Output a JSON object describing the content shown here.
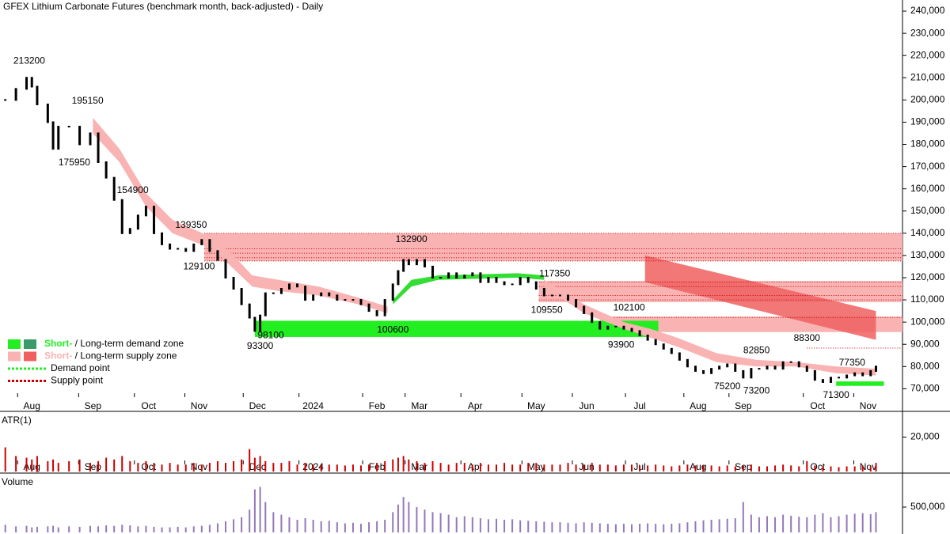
{
  "chart_data": {
    "type": "bar",
    "title": "GFEX Lithium Carbonate Futures (benchmark month, back-adjusted) - Daily",
    "color": "#000000",
    "xlim": [
      0,
      340
    ],
    "xticks": [
      {
        "value": 12,
        "label": "Aug"
      },
      {
        "value": 35,
        "label": "Sep"
      },
      {
        "value": 56,
        "label": "Oct"
      },
      {
        "value": 75,
        "label": "Nov"
      },
      {
        "value": 97,
        "label": "Dec"
      },
      {
        "value": 118,
        "label": "2024"
      },
      {
        "value": 142,
        "label": "Feb"
      },
      {
        "value": 158,
        "label": "Mar"
      },
      {
        "value": 179,
        "label": "Apr"
      },
      {
        "value": 202,
        "label": "May"
      },
      {
        "value": 221,
        "label": "Jun"
      },
      {
        "value": 241,
        "label": "Jul"
      },
      {
        "value": 263,
        "label": "Aug"
      },
      {
        "value": 280,
        "label": "Sep"
      },
      {
        "value": 308,
        "label": "Oct"
      },
      {
        "value": 327,
        "label": "Nov"
      }
    ],
    "ylim": [
      68000,
      245000
    ],
    "yticks": [
      {
        "value": 70000,
        "label": "70,000"
      },
      {
        "value": 80000,
        "label": "80,000"
      },
      {
        "value": 90000,
        "label": "90,000"
      },
      {
        "value": 100000,
        "label": "100,000"
      },
      {
        "value": 110000,
        "label": "110,000"
      },
      {
        "value": 120000,
        "label": "120,000"
      },
      {
        "value": 130000,
        "label": "130,000"
      },
      {
        "value": 140000,
        "label": "140,000"
      },
      {
        "value": 150000,
        "label": "150,000"
      },
      {
        "value": 160000,
        "label": "160,000"
      },
      {
        "value": 170000,
        "label": "170,000"
      },
      {
        "value": 180000,
        "label": "180,000"
      },
      {
        "value": 190000,
        "label": "190,000"
      },
      {
        "value": 200000,
        "label": "200,000"
      },
      {
        "value": 210000,
        "label": "210,000"
      },
      {
        "value": 220000,
        "label": "220,000"
      },
      {
        "value": 230000,
        "label": "230,000"
      },
      {
        "value": 240000,
        "label": "240,000"
      }
    ],
    "x": [
      2,
      6,
      10,
      12,
      14,
      18,
      20,
      22,
      26,
      30,
      34,
      37,
      40,
      43,
      46,
      49,
      52,
      55,
      58,
      61,
      64,
      67,
      70,
      73,
      76,
      79,
      82,
      85,
      88,
      91,
      94,
      96,
      98,
      100,
      103,
      106,
      109,
      112,
      115,
      118,
      121,
      124,
      127,
      130,
      133,
      136,
      139,
      142,
      145,
      148,
      150,
      152,
      154,
      157,
      160,
      163,
      166,
      169,
      172,
      175,
      178,
      181,
      184,
      187,
      190,
      193,
      196,
      199,
      202,
      205,
      208,
      211,
      214,
      217,
      220,
      223,
      226,
      229,
      232,
      235,
      238,
      241,
      244,
      247,
      250,
      253,
      256,
      259,
      262,
      265,
      268,
      271,
      274,
      277,
      280,
      283,
      286,
      289,
      292,
      295,
      298,
      301,
      304,
      307,
      310,
      313,
      316,
      319,
      322,
      325,
      328,
      330
    ],
    "values": [
      200000,
      205000,
      210000,
      206000,
      198000,
      190000,
      178000,
      188000,
      188000,
      180000,
      185000,
      172000,
      165000,
      155000,
      140000,
      142000,
      148000,
      152000,
      140000,
      135000,
      133000,
      133000,
      132000,
      135000,
      137000,
      132000,
      128000,
      120000,
      115000,
      108000,
      102000,
      96000,
      103000,
      113000,
      113000,
      115000,
      117000,
      116000,
      110000,
      112000,
      113000,
      112000,
      110000,
      110000,
      110000,
      108000,
      105000,
      103000,
      110000,
      117000,
      123000,
      128000,
      126000,
      128000,
      125000,
      120000,
      120000,
      122000,
      120000,
      121000,
      122000,
      118000,
      120000,
      118000,
      117000,
      117000,
      120000,
      118000,
      115000,
      112000,
      112000,
      112000,
      110000,
      107000,
      104000,
      100000,
      97000,
      98000,
      98000,
      97000,
      96000,
      94000,
      92000,
      90000,
      88000,
      86000,
      83000,
      80000,
      78000,
      77000,
      79000,
      80000,
      81000,
      78000,
      75000,
      79000,
      79000,
      80000,
      79000,
      82000,
      82000,
      80000,
      78000,
      74000,
      73000,
      75000,
      75000,
      76000,
      77000,
      76000,
      78000,
      80000
    ],
    "annotations": [
      {
        "x": 11,
        "value": 213200
      },
      {
        "x": 33,
        "value": 195150
      },
      {
        "x": 28,
        "value": 175950
      },
      {
        "x": 50,
        "value": 154900
      },
      {
        "x": 72,
        "value": 139350
      },
      {
        "x": 75,
        "value": 129100
      },
      {
        "x": 155,
        "value": 132900
      },
      {
        "x": 209,
        "value": 117350
      },
      {
        "x": 206,
        "value": 109550
      },
      {
        "x": 237,
        "value": 102100
      },
      {
        "x": 234,
        "value": 93900
      },
      {
        "x": 102,
        "value": 98100
      },
      {
        "x": 148,
        "value": 100600
      },
      {
        "x": 98,
        "value": 93300
      },
      {
        "x": 285,
        "value": 82850
      },
      {
        "x": 304,
        "value": 88300
      },
      {
        "x": 274,
        "value": 75200
      },
      {
        "x": 285,
        "value": 73200
      },
      {
        "x": 321,
        "value": 77350
      },
      {
        "x": 315,
        "value": 71300
      }
    ],
    "zones": [
      {
        "color": "#f9b3b3",
        "x": [
          77,
          340
        ],
        "y": [
          127500,
          140000
        ]
      },
      {
        "color": "#f9b3b3",
        "x": [
          203,
          340
        ],
        "y": [
          109000,
          118500
        ]
      },
      {
        "color": "#f9b3b3",
        "x": [
          226,
          340
        ],
        "y": [
          95500,
          102500
        ]
      },
      {
        "color": "#22ee22",
        "x": [
          96,
          248
        ],
        "y": [
          93300,
          100600
        ]
      },
      {
        "color": "#22ee22",
        "x": [
          315,
          333
        ],
        "y": [
          71300,
          73300
        ]
      }
    ],
    "supply_points": {
      "color": "#cc0000",
      "x": [
        77,
        77,
        77,
        77,
        77,
        203,
        203,
        203,
        203,
        226,
        304
      ],
      "values": [
        140000,
        133000,
        131000,
        129000,
        127500,
        118000,
        116000,
        112000,
        110000,
        102100,
        88300
      ]
    },
    "long_zone": {
      "color": "#f06060",
      "x": [
        243,
        330
      ],
      "top": [
        130000,
        105000
      ],
      "bottom": [
        118000,
        92000
      ]
    },
    "bands": [
      {
        "color": "#f9b3b3",
        "x": [
          35,
          45,
          55,
          65,
          80,
          88,
          95,
          105,
          120,
          135,
          146
        ],
        "lower": [
          185000,
          172000,
          152000,
          140000,
          133000,
          124000,
          116000,
          114000,
          112000,
          108000,
          104000
        ],
        "upper": [
          192000,
          178000,
          158000,
          146000,
          138000,
          130000,
          121000,
          119000,
          116000,
          111000,
          107000
        ]
      },
      {
        "color": "#33dd33",
        "x": [
          148,
          155,
          165,
          180,
          195,
          205
        ],
        "lower": [
          108000,
          116000,
          119000,
          119500,
          120000,
          119000
        ],
        "upper": [
          110000,
          119000,
          121000,
          121500,
          122000,
          121000
        ]
      },
      {
        "color": "#f9b3b3",
        "x": [
          205,
          220,
          235,
          245,
          255,
          270,
          285,
          300,
          315,
          330
        ],
        "lower": [
          116000,
          104000,
          97000,
          93000,
          89000,
          82000,
          80000,
          80000,
          77000,
          76000
        ],
        "upper": [
          119000,
          108000,
          100000,
          97000,
          93000,
          86000,
          83000,
          82000,
          80000,
          79000
        ]
      }
    ],
    "legend": [
      {
        "parts": [
          "Short-",
          " / ",
          "Long-term demand zone"
        ],
        "colors": [
          "#22ee22",
          "#3a9a6a"
        ]
      },
      {
        "parts": [
          "Short-",
          " / ",
          "Long-term supply zone"
        ],
        "colors": [
          "#f9b3b3",
          "#f06060"
        ]
      },
      {
        "parts": [
          "Demand point"
        ],
        "colors": [
          "#22ee22"
        ]
      },
      {
        "parts": [
          "Supply point"
        ],
        "colors": [
          "#cc0000"
        ]
      }
    ],
    "atr": {
      "title": "ATR(1)",
      "color": "#cc0000",
      "ylim": [
        0,
        34000
      ],
      "yticks": [
        {
          "value": 20000,
          "label": "20,000"
        }
      ],
      "values": [
        14000,
        9000,
        8000,
        7000,
        9000,
        6000,
        7000,
        5000,
        6000,
        7000,
        5000,
        6000,
        8000,
        7000,
        9000,
        6000,
        5000,
        6000,
        5000,
        4000,
        5000,
        4000,
        4000,
        5000,
        4000,
        5000,
        6000,
        5000,
        6000,
        7000,
        13000,
        8000,
        9000,
        6000,
        5000,
        5000,
        6000,
        4000,
        5000,
        4000,
        4000,
        4000,
        4000,
        3500,
        4000,
        3500,
        4000,
        5000,
        6000,
        7000,
        8000,
        9000,
        7000,
        6000,
        5000,
        6000,
        5000,
        4000,
        5000,
        5000,
        4000,
        5000,
        4000,
        4000,
        5000,
        4000,
        4000,
        5000,
        5000,
        4000,
        4000,
        4000,
        5000,
        4000,
        4000,
        5000,
        4000,
        4000,
        3500,
        4000,
        4000,
        3500,
        3500,
        4000,
        3500,
        3000,
        3500,
        4000,
        3500,
        3500,
        3500,
        3000,
        3500,
        3000,
        3500,
        4000,
        3000,
        3000,
        3500,
        4000,
        3500,
        3000,
        6000,
        3500,
        3000,
        3000,
        2500,
        3000,
        3000,
        3500,
        3000,
        5000
      ]
    },
    "volume": {
      "title": "Volume",
      "color": "#6a3d9a",
      "ylim": [
        0,
        1140000
      ],
      "yticks": [
        {
          "value": 500000,
          "label": "500,000"
        }
      ],
      "values": [
        150000,
        120000,
        130000,
        100000,
        110000,
        120000,
        130000,
        100000,
        120000,
        110000,
        130000,
        120000,
        140000,
        130000,
        150000,
        140000,
        120000,
        130000,
        110000,
        100000,
        100000,
        110000,
        100000,
        120000,
        130000,
        150000,
        180000,
        220000,
        260000,
        300000,
        450000,
        850000,
        900000,
        600000,
        400000,
        350000,
        300000,
        250000,
        280000,
        250000,
        220000,
        230000,
        200000,
        180000,
        190000,
        170000,
        200000,
        220000,
        250000,
        400000,
        550000,
        700000,
        600000,
        500000,
        450000,
        400000,
        380000,
        350000,
        300000,
        320000,
        300000,
        280000,
        260000,
        270000,
        250000,
        260000,
        240000,
        230000,
        220000,
        210000,
        200000,
        200000,
        190000,
        180000,
        200000,
        190000,
        180000,
        170000,
        160000,
        170000,
        160000,
        170000,
        180000,
        170000,
        160000,
        170000,
        180000,
        200000,
        220000,
        240000,
        250000,
        260000,
        270000,
        280000,
        600000,
        350000,
        300000,
        320000,
        300000,
        350000,
        330000,
        310000,
        300000,
        350000,
        380000,
        300000,
        320000,
        350000,
        370000,
        380000,
        360000,
        400000
      ]
    }
  }
}
